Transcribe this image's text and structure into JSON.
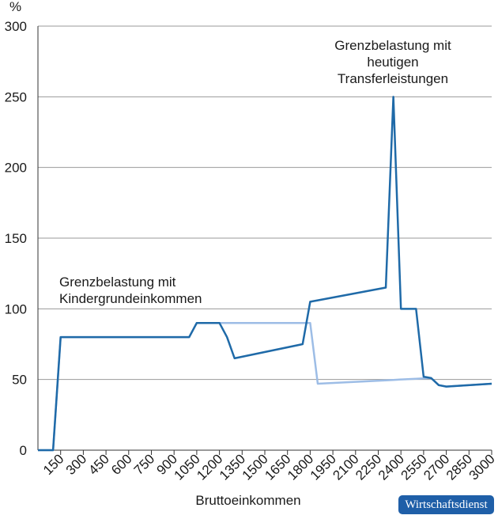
{
  "chart_data": {
    "type": "line",
    "y_label": "%",
    "x_label": "Bruttoeinkommen",
    "x": [
      0,
      100,
      150,
      1000,
      1050,
      1200,
      1250,
      1300,
      1750,
      1800,
      1850,
      2300,
      2350,
      2400,
      2500,
      2550,
      2600,
      2650,
      2700,
      3000
    ],
    "series": [
      {
        "name": "Grenzbelastung mit heutigen Transferleistungen",
        "color": "#1f6aa8",
        "values": [
          0,
          0,
          80,
          80,
          90,
          90,
          80,
          65,
          75,
          105,
          106,
          115,
          250,
          100,
          100,
          52,
          51,
          46,
          45,
          47
        ]
      },
      {
        "name": "Grenzbelastung mit Kindergrundeinkommen",
        "color": "#9dbde6",
        "values": [
          0,
          0,
          80,
          80,
          90,
          90,
          90,
          90,
          90,
          90,
          47,
          49.4,
          49.7,
          50,
          50.5,
          50.8,
          51,
          46,
          45,
          47
        ]
      }
    ],
    "annotations": [
      [
        "Grenzbelastung mit",
        "heutigen",
        "Transferleistungen"
      ],
      [
        "Grenzbelastung mit",
        "Kindergrundeinkommen"
      ]
    ],
    "xlim": [
      0,
      3000
    ],
    "ylim": [
      0,
      300
    ],
    "xticks": [
      150,
      300,
      450,
      600,
      750,
      900,
      1050,
      1200,
      1350,
      1500,
      1650,
      1800,
      1950,
      2100,
      2250,
      2400,
      2550,
      2700,
      2850,
      3000
    ],
    "yticks": [
      0,
      50,
      100,
      150,
      200,
      250,
      300
    ],
    "grid": true
  },
  "source": "Wirtschaftsdienst"
}
